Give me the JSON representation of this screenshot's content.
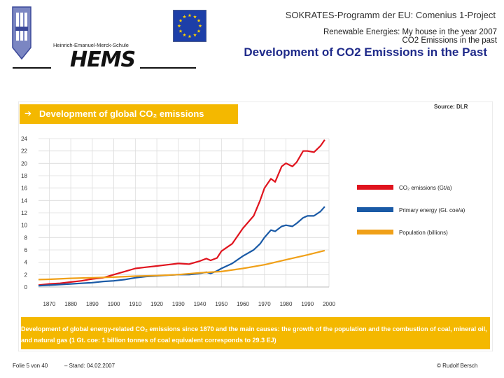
{
  "header": {
    "program": "SOKRATES-Programm der EU: Comenius 1-Project",
    "project_line1": "Renewable Energies: My house in the year 2007",
    "project_line2": "CO2 Emissions in the past",
    "page_title": "Development of CO2 Emissions in the Past",
    "school_name": "Heinrich-Emanuel-Merck-Schule",
    "school_logo_text": "HEMS",
    "logo_icon": "school-emblem-icon",
    "flag_icon": "eu-flag-icon"
  },
  "chart_data": {
    "type": "line",
    "title": "Development of global CO₂ emissions",
    "source": "Source: DLR",
    "caption": "Development of global energy-related CO₂ emissions since 1870 and the main causes: the growth of the population and the combustion of coal, mineral oil, and natural gas (1 Gt. coe: 1 billion tonnes of coal equivalent corresponds to 29.3 EJ)",
    "xlim": [
      1865,
      2000
    ],
    "ylim": [
      0,
      24
    ],
    "x_ticks": [
      1870,
      1880,
      1890,
      1900,
      1910,
      1920,
      1930,
      1940,
      1950,
      1960,
      1970,
      1980,
      1990,
      2000
    ],
    "y_ticks": [
      0,
      2,
      4,
      6,
      8,
      10,
      12,
      14,
      16,
      18,
      20,
      22,
      24
    ],
    "legend_position": "right",
    "series": [
      {
        "name": "CO₂ emissions (Gt/a)",
        "color": "#e0141e",
        "points": [
          [
            1865,
            0.3
          ],
          [
            1870,
            0.5
          ],
          [
            1875,
            0.6
          ],
          [
            1880,
            0.8
          ],
          [
            1885,
            1.0
          ],
          [
            1890,
            1.3
          ],
          [
            1895,
            1.5
          ],
          [
            1900,
            2.0
          ],
          [
            1905,
            2.5
          ],
          [
            1910,
            3.0
          ],
          [
            1915,
            3.2
          ],
          [
            1920,
            3.4
          ],
          [
            1925,
            3.6
          ],
          [
            1930,
            3.8
          ],
          [
            1935,
            3.7
          ],
          [
            1940,
            4.2
          ],
          [
            1943,
            4.6
          ],
          [
            1945,
            4.3
          ],
          [
            1948,
            4.7
          ],
          [
            1950,
            5.8
          ],
          [
            1955,
            7.0
          ],
          [
            1960,
            9.5
          ],
          [
            1965,
            11.5
          ],
          [
            1968,
            14.0
          ],
          [
            1970,
            16.0
          ],
          [
            1973,
            17.5
          ],
          [
            1975,
            17.0
          ],
          [
            1978,
            19.5
          ],
          [
            1980,
            20.0
          ],
          [
            1983,
            19.5
          ],
          [
            1985,
            20.2
          ],
          [
            1988,
            22.0
          ],
          [
            1990,
            22.0
          ],
          [
            1993,
            21.8
          ],
          [
            1996,
            22.8
          ],
          [
            1998,
            23.8
          ]
        ]
      },
      {
        "name": "Primary energy (Gt. coe/a)",
        "color": "#1a5aa6",
        "points": [
          [
            1865,
            0.2
          ],
          [
            1870,
            0.3
          ],
          [
            1875,
            0.4
          ],
          [
            1880,
            0.5
          ],
          [
            1885,
            0.6
          ],
          [
            1890,
            0.7
          ],
          [
            1895,
            0.9
          ],
          [
            1900,
            1.0
          ],
          [
            1905,
            1.2
          ],
          [
            1910,
            1.5
          ],
          [
            1915,
            1.7
          ],
          [
            1920,
            1.8
          ],
          [
            1925,
            1.9
          ],
          [
            1930,
            2.0
          ],
          [
            1935,
            2.0
          ],
          [
            1940,
            2.2
          ],
          [
            1943,
            2.4
          ],
          [
            1945,
            2.2
          ],
          [
            1948,
            2.6
          ],
          [
            1950,
            3.0
          ],
          [
            1955,
            3.8
          ],
          [
            1960,
            5.0
          ],
          [
            1965,
            6.0
          ],
          [
            1968,
            7.0
          ],
          [
            1970,
            8.0
          ],
          [
            1973,
            9.2
          ],
          [
            1975,
            9.0
          ],
          [
            1978,
            9.8
          ],
          [
            1980,
            10.0
          ],
          [
            1983,
            9.8
          ],
          [
            1985,
            10.3
          ],
          [
            1988,
            11.2
          ],
          [
            1990,
            11.5
          ],
          [
            1993,
            11.5
          ],
          [
            1996,
            12.2
          ],
          [
            1998,
            13.0
          ]
        ]
      },
      {
        "name": "Population (billions)",
        "color": "#f0a018",
        "points": [
          [
            1865,
            1.2
          ],
          [
            1870,
            1.25
          ],
          [
            1880,
            1.4
          ],
          [
            1890,
            1.5
          ],
          [
            1900,
            1.6
          ],
          [
            1910,
            1.75
          ],
          [
            1920,
            1.85
          ],
          [
            1930,
            2.0
          ],
          [
            1940,
            2.3
          ],
          [
            1950,
            2.5
          ],
          [
            1960,
            3.0
          ],
          [
            1970,
            3.6
          ],
          [
            1980,
            4.4
          ],
          [
            1990,
            5.2
          ],
          [
            1998,
            5.9
          ]
        ]
      }
    ]
  },
  "footer": {
    "slide": "Folie 5 von 40",
    "date": "–   Stand: 04.02.2007",
    "author": "© Rudolf Bersch"
  }
}
